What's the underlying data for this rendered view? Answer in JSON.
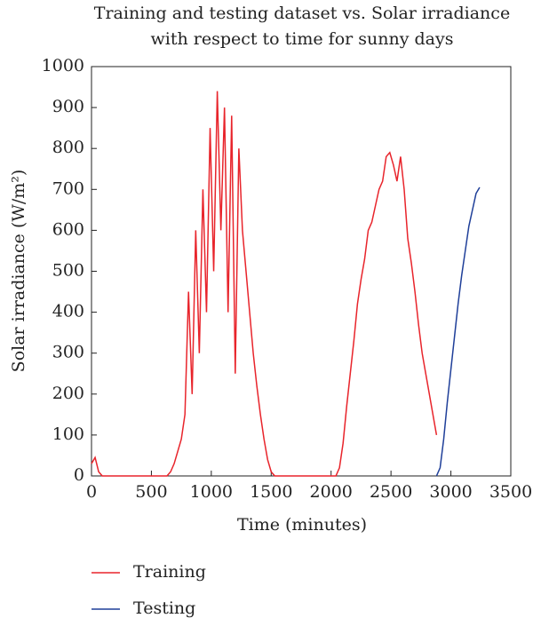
{
  "chart_data": {
    "type": "line",
    "title": [
      "Training and testing dataset vs. Solar irradiance",
      "with respect to time for sunny days"
    ],
    "xlabel": "Time (minutes)",
    "ylabel": "Solar irradiance (W/m²)",
    "xlim": [
      0,
      3500
    ],
    "xticks": [
      0,
      500,
      1000,
      1500,
      2000,
      2500,
      3000,
      3500
    ],
    "ylim": [
      0,
      1000
    ],
    "yticks": [
      0,
      100,
      200,
      300,
      400,
      500,
      600,
      700,
      800,
      900,
      1000
    ],
    "legend": "bottom",
    "series": [
      {
        "name": "Training",
        "color": "#e8242b",
        "x": [
          0,
          30,
          60,
          90,
          120,
          150,
          180,
          210,
          240,
          270,
          300,
          330,
          360,
          390,
          420,
          450,
          480,
          510,
          540,
          570,
          600,
          630,
          660,
          690,
          720,
          750,
          780,
          810,
          840,
          870,
          900,
          930,
          960,
          990,
          1020,
          1050,
          1080,
          1110,
          1140,
          1170,
          1200,
          1230,
          1260,
          1290,
          1320,
          1350,
          1380,
          1410,
          1440,
          1470,
          1500,
          1530,
          1560,
          1590,
          1620,
          1650,
          1680,
          1710,
          1740,
          1770,
          1800,
          1830,
          1860,
          1890,
          1920,
          1950,
          1980,
          2010,
          2040,
          2070,
          2100,
          2130,
          2160,
          2190,
          2220,
          2250,
          2280,
          2310,
          2340,
          2370,
          2400,
          2430,
          2460,
          2490,
          2520,
          2550,
          2580,
          2610,
          2640,
          2670,
          2700,
          2730,
          2760,
          2790,
          2820,
          2850,
          2880
        ],
        "values": [
          30,
          45,
          10,
          0,
          0,
          0,
          0,
          0,
          0,
          0,
          0,
          0,
          0,
          0,
          0,
          0,
          0,
          0,
          0,
          0,
          0,
          0,
          10,
          30,
          60,
          90,
          150,
          450,
          200,
          600,
          300,
          700,
          400,
          850,
          500,
          940,
          600,
          900,
          400,
          880,
          250,
          800,
          600,
          500,
          400,
          300,
          220,
          150,
          90,
          40,
          10,
          0,
          0,
          0,
          0,
          0,
          0,
          0,
          0,
          0,
          0,
          0,
          0,
          0,
          0,
          0,
          0,
          0,
          0,
          20,
          80,
          170,
          250,
          330,
          420,
          480,
          530,
          600,
          620,
          660,
          700,
          720,
          780,
          790,
          760,
          720,
          780,
          700,
          580,
          520,
          450,
          370,
          300,
          250,
          200,
          150,
          100
        ]
      },
      {
        "name": "Testing",
        "color": "#1f3f99",
        "x": [
          2880,
          2910,
          2940,
          2970,
          3000,
          3030,
          3060,
          3090,
          3120,
          3150,
          3180,
          3210,
          3240
        ],
        "values": [
          0,
          20,
          90,
          180,
          260,
          340,
          420,
          490,
          550,
          610,
          650,
          690,
          705
        ]
      }
    ]
  }
}
